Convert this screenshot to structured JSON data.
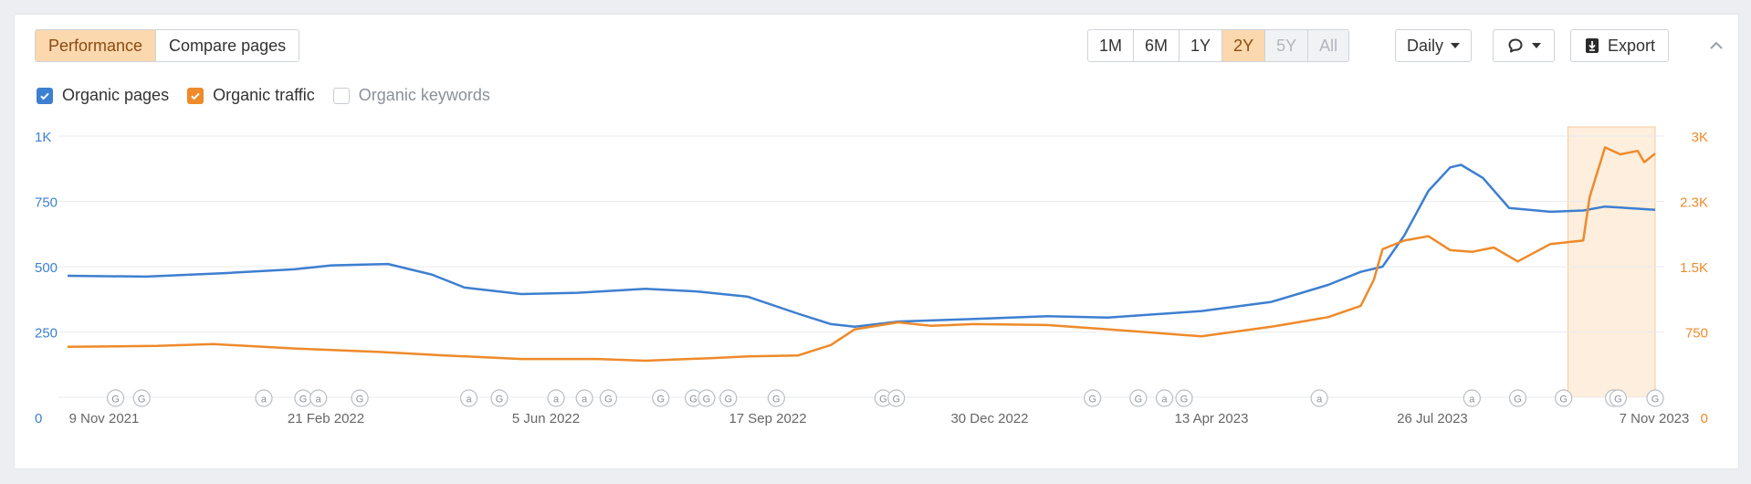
{
  "toolbar": {
    "tabs": [
      {
        "label": "Performance",
        "active": true
      },
      {
        "label": "Compare pages",
        "active": false
      }
    ],
    "ranges": [
      {
        "label": "1M",
        "state": "normal"
      },
      {
        "label": "6M",
        "state": "normal"
      },
      {
        "label": "1Y",
        "state": "normal"
      },
      {
        "label": "2Y",
        "state": "active"
      },
      {
        "label": "5Y",
        "state": "disabled"
      },
      {
        "label": "All",
        "state": "disabled"
      }
    ],
    "interval": "Daily",
    "export_label": "Export"
  },
  "legend": [
    {
      "label": "Organic pages",
      "checked": true,
      "color": "#3d7fd0"
    },
    {
      "label": "Organic traffic",
      "checked": true,
      "color": "#ee8a2a"
    },
    {
      "label": "Organic keywords",
      "checked": false,
      "color": "#c8ccd1"
    }
  ],
  "colors": {
    "pages": "#3d7fd0",
    "traffic": "#ee8a2a",
    "highlight": "#fdeedd"
  },
  "chart_data": {
    "type": "line",
    "x_start": "2021-11-09",
    "x_end": "2023-11-07",
    "xticks": [
      "9 Nov 2021",
      "21 Feb 2022",
      "5 Jun 2022",
      "17 Sep 2022",
      "30 Dec 2022",
      "13 Apr 2023",
      "26 Jul 2023",
      "7 Nov 2023"
    ],
    "y_left": {
      "ylim": [
        0,
        1000
      ],
      "ticks": [
        "0",
        "250",
        "500",
        "750",
        "1K"
      ]
    },
    "y_right": {
      "ylim": [
        0,
        3000
      ],
      "ticks": [
        "0",
        "750",
        "1.5K",
        "2.3K",
        "3K"
      ]
    },
    "grid": true,
    "highlight_range": [
      "2023-09-28",
      "2023-11-07"
    ],
    "series": [
      {
        "name": "Organic pages",
        "axis": "left",
        "points": [
          [
            "2021-11-09",
            465
          ],
          [
            "2021-12-15",
            462
          ],
          [
            "2022-01-20",
            475
          ],
          [
            "2022-02-21",
            490
          ],
          [
            "2022-03-10",
            505
          ],
          [
            "2022-04-05",
            510
          ],
          [
            "2022-04-25",
            470
          ],
          [
            "2022-05-10",
            420
          ],
          [
            "2022-06-05",
            395
          ],
          [
            "2022-07-01",
            400
          ],
          [
            "2022-08-01",
            415
          ],
          [
            "2022-08-25",
            405
          ],
          [
            "2022-09-17",
            385
          ],
          [
            "2022-10-10",
            320
          ],
          [
            "2022-10-25",
            280
          ],
          [
            "2022-11-05",
            270
          ],
          [
            "2022-11-25",
            290
          ],
          [
            "2022-12-30",
            300
          ],
          [
            "2023-02-01",
            310
          ],
          [
            "2023-03-01",
            305
          ],
          [
            "2023-04-13",
            330
          ],
          [
            "2023-05-15",
            365
          ],
          [
            "2023-06-10",
            430
          ],
          [
            "2023-06-25",
            480
          ],
          [
            "2023-07-05",
            500
          ],
          [
            "2023-07-15",
            620
          ],
          [
            "2023-07-26",
            790
          ],
          [
            "2023-08-05",
            880
          ],
          [
            "2023-08-10",
            890
          ],
          [
            "2023-08-20",
            840
          ],
          [
            "2023-09-01",
            725
          ],
          [
            "2023-09-20",
            710
          ],
          [
            "2023-10-05",
            715
          ],
          [
            "2023-10-15",
            730
          ],
          [
            "2023-10-25",
            725
          ],
          [
            "2023-11-07",
            718
          ]
        ]
      },
      {
        "name": "Organic traffic",
        "axis": "right",
        "points": [
          [
            "2021-11-09",
            580
          ],
          [
            "2021-12-20",
            590
          ],
          [
            "2022-01-15",
            610
          ],
          [
            "2022-02-21",
            560
          ],
          [
            "2022-04-01",
            520
          ],
          [
            "2022-05-01",
            480
          ],
          [
            "2022-06-05",
            440
          ],
          [
            "2022-07-10",
            440
          ],
          [
            "2022-08-01",
            420
          ],
          [
            "2022-09-01",
            450
          ],
          [
            "2022-09-17",
            470
          ],
          [
            "2022-10-10",
            480
          ],
          [
            "2022-10-25",
            600
          ],
          [
            "2022-11-05",
            780
          ],
          [
            "2022-11-25",
            860
          ],
          [
            "2022-12-10",
            820
          ],
          [
            "2022-12-30",
            840
          ],
          [
            "2023-02-01",
            830
          ],
          [
            "2023-03-01",
            780
          ],
          [
            "2023-04-13",
            700
          ],
          [
            "2023-05-15",
            810
          ],
          [
            "2023-06-10",
            920
          ],
          [
            "2023-06-25",
            1050
          ],
          [
            "2023-07-01",
            1350
          ],
          [
            "2023-07-05",
            1700
          ],
          [
            "2023-07-15",
            1800
          ],
          [
            "2023-07-26",
            1850
          ],
          [
            "2023-08-05",
            1690
          ],
          [
            "2023-08-15",
            1670
          ],
          [
            "2023-08-25",
            1720
          ],
          [
            "2023-09-05",
            1560
          ],
          [
            "2023-09-20",
            1760
          ],
          [
            "2023-10-05",
            1800
          ],
          [
            "2023-10-08",
            2300
          ],
          [
            "2023-10-15",
            2870
          ],
          [
            "2023-10-22",
            2790
          ],
          [
            "2023-10-30",
            2830
          ],
          [
            "2023-11-02",
            2700
          ],
          [
            "2023-11-07",
            2800
          ]
        ]
      }
    ],
    "annotations": [
      {
        "date": "2021-12-01",
        "label": "G"
      },
      {
        "date": "2021-12-13",
        "label": "G"
      },
      {
        "date": "2022-02-07",
        "label": "a"
      },
      {
        "date": "2022-02-25",
        "label": "G"
      },
      {
        "date": "2022-03-04",
        "label": "a"
      },
      {
        "date": "2022-03-23",
        "label": "G"
      },
      {
        "date": "2022-05-12",
        "label": "a"
      },
      {
        "date": "2022-05-26",
        "label": "G"
      },
      {
        "date": "2022-06-21",
        "label": "a"
      },
      {
        "date": "2022-07-04",
        "label": "a"
      },
      {
        "date": "2022-07-15",
        "label": "G"
      },
      {
        "date": "2022-08-08",
        "label": "G"
      },
      {
        "date": "2022-08-23",
        "label": "G"
      },
      {
        "date": "2022-08-29",
        "label": "G"
      },
      {
        "date": "2022-09-08",
        "label": "G"
      },
      {
        "date": "2022-09-30",
        "label": "G"
      },
      {
        "date": "2022-11-18",
        "label": "G"
      },
      {
        "date": "2022-11-24",
        "label": "G"
      },
      {
        "date": "2023-02-22",
        "label": "G"
      },
      {
        "date": "2023-03-15",
        "label": "G"
      },
      {
        "date": "2023-03-27",
        "label": "a"
      },
      {
        "date": "2023-04-05",
        "label": "G"
      },
      {
        "date": "2023-06-06",
        "label": "a"
      },
      {
        "date": "2023-08-15",
        "label": "a"
      },
      {
        "date": "2023-09-05",
        "label": "G"
      },
      {
        "date": "2023-09-26",
        "label": "G"
      },
      {
        "date": "2023-10-19",
        "label": "G"
      },
      {
        "date": "2023-10-21",
        "label": "G"
      },
      {
        "date": "2023-11-07",
        "label": "G"
      }
    ]
  }
}
